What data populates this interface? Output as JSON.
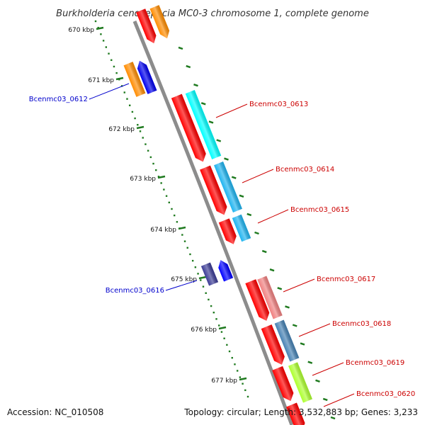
{
  "title": "Burkholderia cenocepacia MC0-3 chromosome 1, complete genome",
  "accession": "Accession: NC_010508",
  "summary": "Topology: circular; Length: 3,532,883 bp; Genes: 3,233",
  "kbp_ticks": [
    "670 kbp",
    "671 kbp",
    "672 kbp",
    "673 kbp",
    "674 kbp",
    "675 kbp",
    "676 kbp",
    "677 kbp"
  ],
  "colors": {
    "backbone": "#8c8c8c",
    "ruler": "#1f7a1f",
    "label_left": "#0000cc",
    "label_right": "#cc0000"
  },
  "genes": [
    {
      "label": "",
      "color": "#ff0000"
    },
    {
      "label": "",
      "color": "#ff8c00"
    },
    {
      "label": "",
      "color": "#ff8c00"
    },
    {
      "label": "Bcenmc03_0612",
      "color": "#0000ee"
    },
    {
      "label": "Bcenmc03_0613",
      "color": "#ff0000"
    },
    {
      "label": "",
      "color": "#00ffff"
    },
    {
      "label": "Bcenmc03_0614",
      "color": "#ff0000"
    },
    {
      "label": "",
      "color": "#1eb4f0"
    },
    {
      "label": "Bcenmc03_0615",
      "color": "#ff0000"
    },
    {
      "label": "",
      "color": "#1eb4f0"
    },
    {
      "label": "Bcenmc03_0616",
      "color": "#3c3c96"
    },
    {
      "label": "",
      "color": "#0000ff"
    },
    {
      "label": "Bcenmc03_0617",
      "color": "#ff0000"
    },
    {
      "label": "",
      "color": "#f08080"
    },
    {
      "label": "Bcenmc03_0618",
      "color": "#ff0000"
    },
    {
      "label": "",
      "color": "#4682b4"
    },
    {
      "label": "Bcenmc03_0619",
      "color": "#ff0000"
    },
    {
      "label": "",
      "color": "#adff2f"
    },
    {
      "label": "Bcenmc03_0620",
      "color": "#ff0000"
    }
  ]
}
